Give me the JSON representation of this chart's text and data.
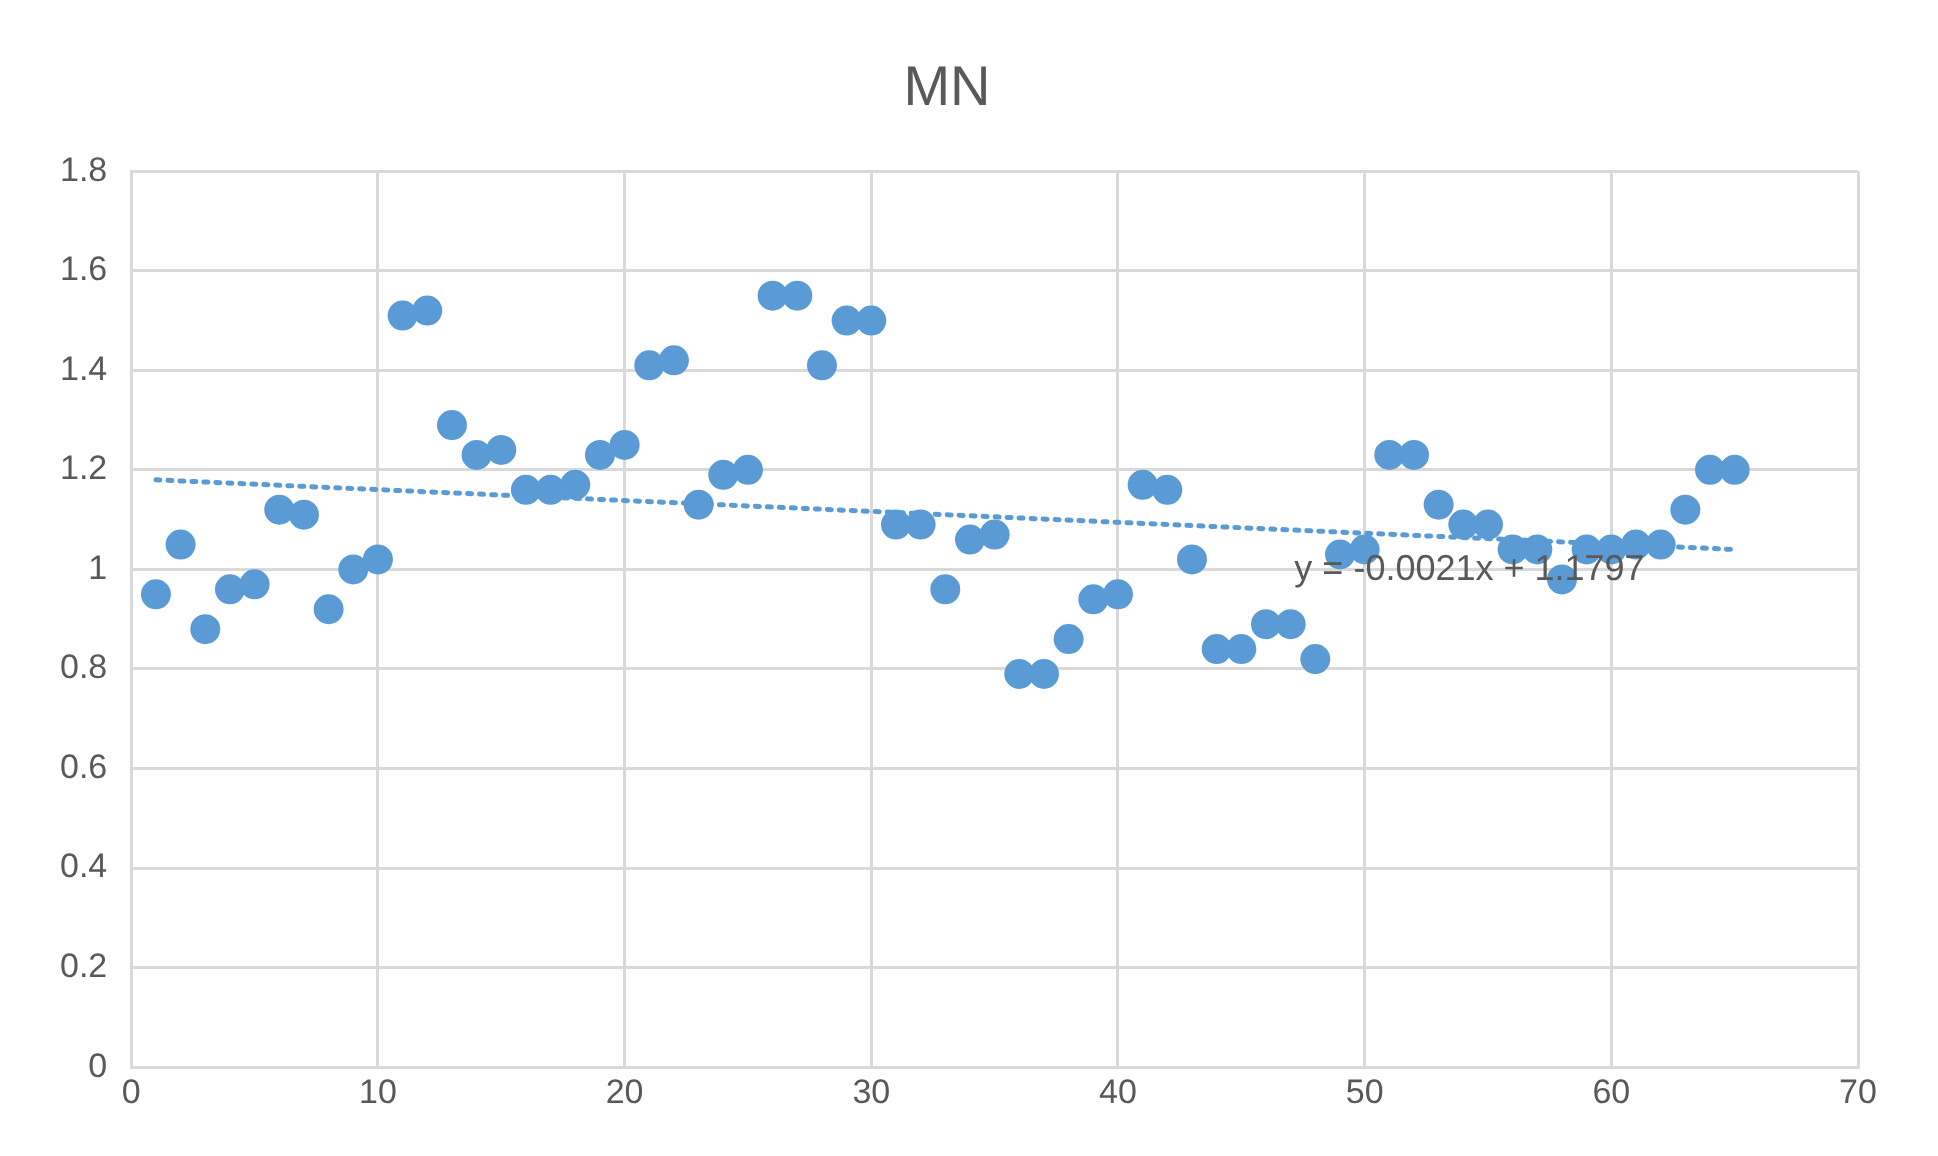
{
  "chart_data": {
    "type": "scatter",
    "title": "MN",
    "marker": "circle",
    "grid": true,
    "legend": false,
    "xlim": [
      0,
      70
    ],
    "xticks": [
      0,
      10,
      20,
      30,
      40,
      50,
      60,
      70
    ],
    "ylim": [
      0,
      1.8
    ],
    "yticks": [
      0,
      0.2,
      0.4,
      0.6,
      0.8,
      1,
      1.2,
      1.4,
      1.6,
      1.8
    ],
    "series": [
      {
        "type": "scatter",
        "color": "#5b9bd5",
        "x": [
          1,
          2,
          3,
          4,
          5,
          6,
          7,
          8,
          9,
          10,
          11,
          12,
          13,
          14,
          15,
          16,
          17,
          18,
          19,
          20,
          21,
          22,
          23,
          24,
          25,
          26,
          27,
          28,
          29,
          30,
          31,
          32,
          33,
          34,
          35,
          36,
          37,
          38,
          39,
          40,
          41,
          42,
          43,
          44,
          45,
          46,
          47,
          48,
          49,
          50,
          51,
          52,
          53,
          54,
          55,
          56,
          57,
          58,
          59,
          60,
          61,
          62,
          63,
          64,
          65
        ],
        "values": [
          0.95,
          1.05,
          0.88,
          0.96,
          0.97,
          1.12,
          1.11,
          0.92,
          1.0,
          1.02,
          1.51,
          1.52,
          1.29,
          1.23,
          1.24,
          1.16,
          1.16,
          1.17,
          1.23,
          1.25,
          1.41,
          1.42,
          1.13,
          1.19,
          1.2,
          1.55,
          1.55,
          1.41,
          1.5,
          1.5,
          1.09,
          1.09,
          0.96,
          1.06,
          1.07,
          0.79,
          0.79,
          0.86,
          0.94,
          0.95,
          1.17,
          1.16,
          1.02,
          0.84,
          0.84,
          0.89,
          0.89,
          0.82,
          1.03,
          1.04,
          1.23,
          1.23,
          1.13,
          1.09,
          1.09,
          1.04,
          1.04,
          0.98,
          1.04,
          1.04,
          1.05,
          1.05,
          1.12,
          1.2,
          1.2
        ]
      },
      {
        "type": "line",
        "color": "#5b9bd5",
        "line_style": "dotted",
        "marker": "none",
        "x": [
          1,
          65
        ],
        "values": [
          1.18,
          1.04
        ]
      }
    ],
    "annotations": [
      "y = -0.0021x + 1.1797"
    ]
  }
}
